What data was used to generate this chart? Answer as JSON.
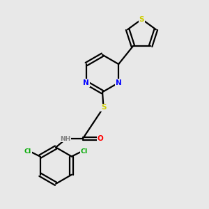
{
  "background_color": "#e8e8e8",
  "bond_color": "#000000",
  "atom_colors": {
    "N": "#0000ff",
    "S": "#cccc00",
    "O": "#ff0000",
    "Cl": "#00aa00",
    "H": "#808080",
    "C": "#000000"
  },
  "figsize": [
    3.0,
    3.0
  ],
  "dpi": 100
}
